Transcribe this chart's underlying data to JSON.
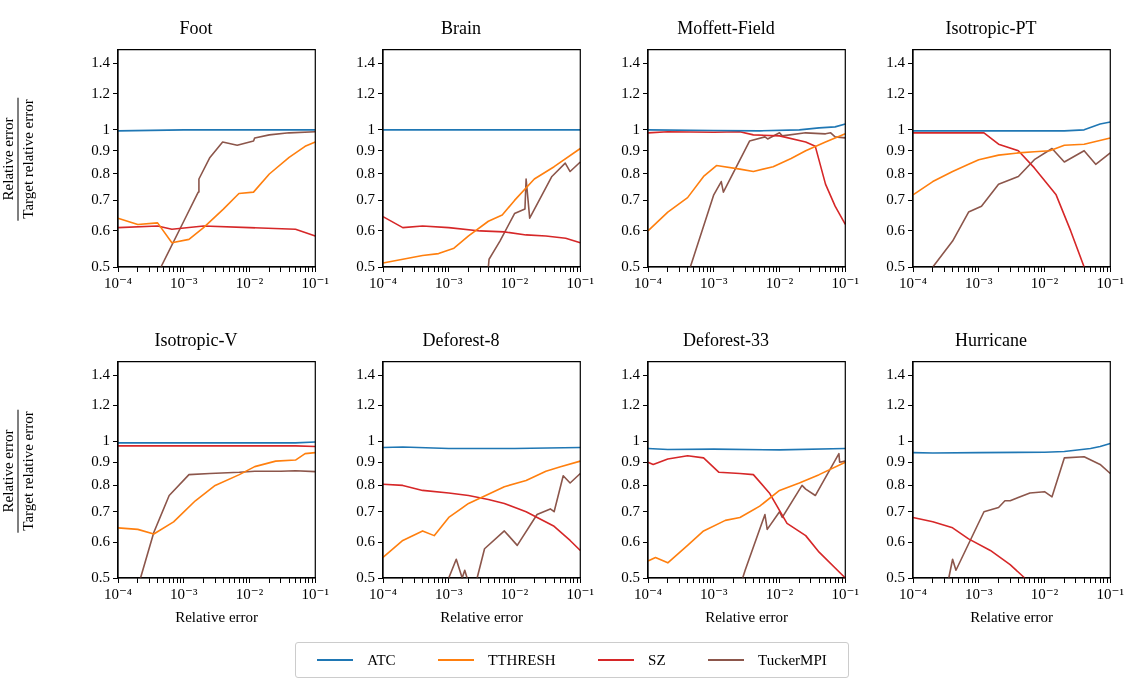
{
  "chart_data": [
    {
      "type": "line",
      "title": "Foot",
      "ylabel": "Relative error\nTarget relative error",
      "xlim": [
        0.0001,
        0.1
      ],
      "ylim": [
        0.5,
        1.5
      ],
      "log": "xy",
      "legend": "bottom",
      "xticks": [
        {
          "value": 0.0001,
          "label": "10⁻⁴"
        },
        {
          "value": 0.0002,
          "label": null
        },
        {
          "value": 0.0003,
          "label": null
        },
        {
          "value": 0.0004,
          "label": null
        },
        {
          "value": 0.0005,
          "label": null
        },
        {
          "value": 0.0006,
          "label": null
        },
        {
          "value": 0.0007,
          "label": null
        },
        {
          "value": 0.0008,
          "label": null
        },
        {
          "value": 0.0009,
          "label": null
        },
        {
          "value": 0.001,
          "label": "10⁻³"
        },
        {
          "value": 0.002,
          "label": null
        },
        {
          "value": 0.003,
          "label": null
        },
        {
          "value": 0.004,
          "label": null
        },
        {
          "value": 0.005,
          "label": null
        },
        {
          "value": 0.006,
          "label": null
        },
        {
          "value": 0.007,
          "label": null
        },
        {
          "value": 0.008,
          "label": null
        },
        {
          "value": 0.009,
          "label": null
        },
        {
          "value": 0.01,
          "label": "10⁻²"
        },
        {
          "value": 0.02,
          "label": null
        },
        {
          "value": 0.03,
          "label": null
        },
        {
          "value": 0.04,
          "label": null
        },
        {
          "value": 0.05,
          "label": null
        },
        {
          "value": 0.06,
          "label": null
        },
        {
          "value": 0.07,
          "label": null
        },
        {
          "value": 0.08,
          "label": null
        },
        {
          "value": 0.09,
          "label": null
        },
        {
          "value": 0.1,
          "label": "10⁻¹"
        }
      ],
      "yticks": [
        0.5,
        0.6,
        0.7,
        0.8,
        0.9,
        1,
        1.2,
        1.4
      ],
      "series": [
        {
          "name": "ATC",
          "color": "#1f77b4",
          "x": [
            0.0001,
            0.001,
            0.01,
            0.1
          ],
          "values": [
            0.995,
            1.0,
            1.0,
            1.0
          ]
        },
        {
          "name": "TTHRESH",
          "color": "#ff7f0e",
          "x": [
            0.0001,
            0.0002,
            0.0004,
            0.00066,
            0.0012,
            0.002,
            0.004,
            0.0069,
            0.0115,
            0.02,
            0.04,
            0.07,
            0.1
          ],
          "values": [
            0.64,
            0.62,
            0.625,
            0.565,
            0.575,
            0.61,
            0.67,
            0.725,
            0.73,
            0.8,
            0.87,
            0.92,
            0.94
          ]
        },
        {
          "name": "SZ",
          "color": "#d62728",
          "x": [
            0.0001,
            0.0004,
            0.00066,
            0.002,
            0.01,
            0.05,
            0.1
          ],
          "values": [
            0.61,
            0.615,
            0.605,
            0.615,
            0.61,
            0.605,
            0.585
          ]
        },
        {
          "name": "TuckerMPI",
          "color": "#8c564b",
          "x": [
            0.00045,
            0.001,
            0.00166,
            0.0017,
            0.0025,
            0.0039,
            0.0065,
            0.0115,
            0.012,
            0.02,
            0.04,
            0.1
          ],
          "values": [
            0.5,
            0.63,
            0.73,
            0.78,
            0.87,
            0.94,
            0.925,
            0.945,
            0.96,
            0.975,
            0.985,
            0.99
          ]
        }
      ]
    },
    {
      "type": "line",
      "title": "Brain",
      "xlim": [
        0.0001,
        0.1
      ],
      "ylim": [
        0.5,
        1.5
      ],
      "log": "xy",
      "xticks": [
        {
          "value": 0.0001,
          "label": "10⁻⁴"
        },
        {
          "value": 0.0002,
          "label": null
        },
        {
          "value": 0.0003,
          "label": null
        },
        {
          "value": 0.0004,
          "label": null
        },
        {
          "value": 0.0005,
          "label": null
        },
        {
          "value": 0.0006,
          "label": null
        },
        {
          "value": 0.0007,
          "label": null
        },
        {
          "value": 0.0008,
          "label": null
        },
        {
          "value": 0.0009,
          "label": null
        },
        {
          "value": 0.001,
          "label": "10⁻³"
        },
        {
          "value": 0.002,
          "label": null
        },
        {
          "value": 0.003,
          "label": null
        },
        {
          "value": 0.004,
          "label": null
        },
        {
          "value": 0.005,
          "label": null
        },
        {
          "value": 0.006,
          "label": null
        },
        {
          "value": 0.007,
          "label": null
        },
        {
          "value": 0.008,
          "label": null
        },
        {
          "value": 0.009,
          "label": null
        },
        {
          "value": 0.01,
          "label": "10⁻²"
        },
        {
          "value": 0.02,
          "label": null
        },
        {
          "value": 0.03,
          "label": null
        },
        {
          "value": 0.04,
          "label": null
        },
        {
          "value": 0.05,
          "label": null
        },
        {
          "value": 0.06,
          "label": null
        },
        {
          "value": 0.07,
          "label": null
        },
        {
          "value": 0.08,
          "label": null
        },
        {
          "value": 0.09,
          "label": null
        },
        {
          "value": 0.1,
          "label": "10⁻¹"
        }
      ],
      "yticks": [
        0.5,
        0.6,
        0.7,
        0.8,
        0.9,
        1,
        1.2,
        1.4
      ],
      "series": [
        {
          "color": "#1f77b4",
          "x": [
            0.0001,
            0.001,
            0.01,
            0.1
          ],
          "values": [
            1.0,
            1.0,
            1.0,
            1.0
          ]
        },
        {
          "color": "#ff7f0e",
          "x": [
            0.0001,
            0.0002,
            0.0004,
            0.0007,
            0.0012,
            0.002,
            0.004,
            0.0065,
            0.01,
            0.02,
            0.04,
            0.1
          ],
          "values": [
            0.51,
            0.52,
            0.53,
            0.535,
            0.55,
            0.585,
            0.63,
            0.65,
            0.7,
            0.78,
            0.83,
            0.91
          ]
        },
        {
          "color": "#d62728",
          "x": [
            0.0001,
            0.0002,
            0.0004,
            0.001,
            0.003,
            0.007,
            0.015,
            0.03,
            0.06,
            0.1
          ],
          "values": [
            0.645,
            0.61,
            0.615,
            0.61,
            0.6,
            0.597,
            0.588,
            0.585,
            0.578,
            0.565
          ]
        },
        {
          "color": "#8c564b",
          "x": [
            0.004,
            0.0041,
            0.006,
            0.01,
            0.0144,
            0.015,
            0.017,
            0.037,
            0.059,
            0.07,
            0.1
          ],
          "values": [
            0.5,
            0.52,
            0.57,
            0.655,
            0.67,
            0.78,
            0.64,
            0.79,
            0.845,
            0.81,
            0.85
          ]
        }
      ]
    },
    {
      "type": "line",
      "title": "Moffett-Field",
      "xlim": [
        0.0001,
        0.1
      ],
      "ylim": [
        0.5,
        1.5
      ],
      "log": "xy",
      "xticks": [
        {
          "value": 0.0001,
          "label": "10⁻⁴"
        },
        {
          "value": 0.0002,
          "label": null
        },
        {
          "value": 0.0003,
          "label": null
        },
        {
          "value": 0.0004,
          "label": null
        },
        {
          "value": 0.0005,
          "label": null
        },
        {
          "value": 0.0006,
          "label": null
        },
        {
          "value": 0.0007,
          "label": null
        },
        {
          "value": 0.0008,
          "label": null
        },
        {
          "value": 0.0009,
          "label": null
        },
        {
          "value": 0.001,
          "label": "10⁻³"
        },
        {
          "value": 0.002,
          "label": null
        },
        {
          "value": 0.003,
          "label": null
        },
        {
          "value": 0.004,
          "label": null
        },
        {
          "value": 0.005,
          "label": null
        },
        {
          "value": 0.006,
          "label": null
        },
        {
          "value": 0.007,
          "label": null
        },
        {
          "value": 0.008,
          "label": null
        },
        {
          "value": 0.009,
          "label": null
        },
        {
          "value": 0.01,
          "label": "10⁻²"
        },
        {
          "value": 0.02,
          "label": null
        },
        {
          "value": 0.03,
          "label": null
        },
        {
          "value": 0.04,
          "label": null
        },
        {
          "value": 0.05,
          "label": null
        },
        {
          "value": 0.06,
          "label": null
        },
        {
          "value": 0.07,
          "label": null
        },
        {
          "value": 0.08,
          "label": null
        },
        {
          "value": 0.09,
          "label": null
        },
        {
          "value": 0.1,
          "label": "10⁻¹"
        }
      ],
      "yticks": [
        0.5,
        0.6,
        0.7,
        0.8,
        0.9,
        1,
        1.2,
        1.4
      ],
      "series": [
        {
          "color": "#1f77b4",
          "x": [
            0.0001,
            0.001,
            0.005,
            0.02,
            0.04,
            0.07,
            0.1
          ],
          "values": [
            1.0,
            0.997,
            0.995,
            1.0,
            1.01,
            1.015,
            1.03
          ]
        },
        {
          "color": "#ff7f0e",
          "x": [
            0.0001,
            0.0002,
            0.0004,
            0.0007,
            0.0011,
            0.0025,
            0.004,
            0.008,
            0.015,
            0.025,
            0.05,
            0.1
          ],
          "values": [
            0.6,
            0.66,
            0.71,
            0.79,
            0.835,
            0.82,
            0.81,
            0.83,
            0.865,
            0.9,
            0.94,
            0.98
          ]
        },
        {
          "color": "#d62728",
          "x": [
            0.0001,
            0.0002,
            0.001,
            0.0025,
            0.004,
            0.01,
            0.025,
            0.035,
            0.05,
            0.07,
            0.1
          ],
          "values": [
            0.985,
            0.99,
            0.988,
            0.99,
            0.975,
            0.97,
            0.94,
            0.92,
            0.76,
            0.68,
            0.62
          ]
        },
        {
          "color": "#8c564b",
          "x": [
            0.00044,
            0.001,
            0.0013,
            0.0014,
            0.0035,
            0.006,
            0.0066,
            0.01,
            0.011,
            0.025,
            0.05,
            0.06,
            0.07,
            0.1
          ],
          "values": [
            0.5,
            0.72,
            0.77,
            0.73,
            0.945,
            0.965,
            0.955,
            0.985,
            0.97,
            0.985,
            0.98,
            0.985,
            0.965,
            0.96
          ]
        }
      ]
    },
    {
      "type": "line",
      "title": "Isotropic-PT",
      "xlim": [
        0.0001,
        0.1
      ],
      "ylim": [
        0.5,
        1.5
      ],
      "log": "xy",
      "xticks": [
        {
          "value": 0.0001,
          "label": "10⁻⁴"
        },
        {
          "value": 0.0002,
          "label": null
        },
        {
          "value": 0.0003,
          "label": null
        },
        {
          "value": 0.0004,
          "label": null
        },
        {
          "value": 0.0005,
          "label": null
        },
        {
          "value": 0.0006,
          "label": null
        },
        {
          "value": 0.0007,
          "label": null
        },
        {
          "value": 0.0008,
          "label": null
        },
        {
          "value": 0.0009,
          "label": null
        },
        {
          "value": 0.001,
          "label": "10⁻³"
        },
        {
          "value": 0.002,
          "label": null
        },
        {
          "value": 0.003,
          "label": null
        },
        {
          "value": 0.004,
          "label": null
        },
        {
          "value": 0.005,
          "label": null
        },
        {
          "value": 0.006,
          "label": null
        },
        {
          "value": 0.007,
          "label": null
        },
        {
          "value": 0.008,
          "label": null
        },
        {
          "value": 0.009,
          "label": null
        },
        {
          "value": 0.01,
          "label": "10⁻²"
        },
        {
          "value": 0.02,
          "label": null
        },
        {
          "value": 0.03,
          "label": null
        },
        {
          "value": 0.04,
          "label": null
        },
        {
          "value": 0.05,
          "label": null
        },
        {
          "value": 0.06,
          "label": null
        },
        {
          "value": 0.07,
          "label": null
        },
        {
          "value": 0.08,
          "label": null
        },
        {
          "value": 0.09,
          "label": null
        },
        {
          "value": 0.1,
          "label": "10⁻¹"
        }
      ],
      "yticks": [
        0.5,
        0.6,
        0.7,
        0.8,
        0.9,
        1,
        1.2,
        1.4
      ],
      "series": [
        {
          "color": "#1f77b4",
          "x": [
            0.0001,
            0.001,
            0.02,
            0.04,
            0.07,
            0.1
          ],
          "values": [
            0.995,
            0.995,
            0.995,
            1.0,
            1.03,
            1.04
          ]
        },
        {
          "color": "#ff7f0e",
          "x": [
            0.0001,
            0.0002,
            0.0004,
            0.0007,
            0.001,
            0.002,
            0.004,
            0.007,
            0.012,
            0.02,
            0.04,
            0.1
          ],
          "values": [
            0.72,
            0.77,
            0.81,
            0.84,
            0.86,
            0.88,
            0.89,
            0.895,
            0.9,
            0.925,
            0.93,
            0.96
          ]
        },
        {
          "color": "#d62728",
          "x": [
            0.0001,
            0.0012,
            0.002,
            0.004,
            0.007,
            0.015,
            0.025,
            0.04
          ],
          "values": [
            0.985,
            0.985,
            0.93,
            0.9,
            0.825,
            0.72,
            0.6,
            0.5
          ]
        },
        {
          "color": "#8c564b",
          "x": [
            0.0002,
            0.0004,
            0.0007,
            0.0011,
            0.002,
            0.004,
            0.007,
            0.013,
            0.02,
            0.04,
            0.06,
            0.1
          ],
          "values": [
            0.5,
            0.57,
            0.66,
            0.68,
            0.76,
            0.79,
            0.86,
            0.91,
            0.85,
            0.9,
            0.84,
            0.89
          ]
        }
      ]
    },
    {
      "type": "line",
      "title": "Isotropic-V",
      "xlabel": "Relative error",
      "ylabel": "Relative error\nTarget relative error",
      "xlim": [
        0.0001,
        0.1
      ],
      "ylim": [
        0.5,
        1.5
      ],
      "log": "xy",
      "xticks": [
        {
          "value": 0.0001,
          "label": "10⁻⁴"
        },
        {
          "value": 0.0002,
          "label": null
        },
        {
          "value": 0.0003,
          "label": null
        },
        {
          "value": 0.0004,
          "label": null
        },
        {
          "value": 0.0005,
          "label": null
        },
        {
          "value": 0.0006,
          "label": null
        },
        {
          "value": 0.0007,
          "label": null
        },
        {
          "value": 0.0008,
          "label": null
        },
        {
          "value": 0.0009,
          "label": null
        },
        {
          "value": 0.001,
          "label": "10⁻³"
        },
        {
          "value": 0.002,
          "label": null
        },
        {
          "value": 0.003,
          "label": null
        },
        {
          "value": 0.004,
          "label": null
        },
        {
          "value": 0.005,
          "label": null
        },
        {
          "value": 0.006,
          "label": null
        },
        {
          "value": 0.007,
          "label": null
        },
        {
          "value": 0.008,
          "label": null
        },
        {
          "value": 0.009,
          "label": null
        },
        {
          "value": 0.01,
          "label": "10⁻²"
        },
        {
          "value": 0.02,
          "label": null
        },
        {
          "value": 0.03,
          "label": null
        },
        {
          "value": 0.04,
          "label": null
        },
        {
          "value": 0.05,
          "label": null
        },
        {
          "value": 0.06,
          "label": null
        },
        {
          "value": 0.07,
          "label": null
        },
        {
          "value": 0.08,
          "label": null
        },
        {
          "value": 0.09,
          "label": null
        },
        {
          "value": 0.1,
          "label": "10⁻¹"
        }
      ],
      "yticks": [
        0.5,
        0.6,
        0.7,
        0.8,
        0.9,
        1,
        1.2,
        1.4
      ],
      "series": [
        {
          "color": "#1f77b4",
          "x": [
            0.0001,
            0.001,
            0.01,
            0.05,
            0.1
          ],
          "values": [
            0.993,
            0.993,
            0.993,
            0.993,
            0.997
          ]
        },
        {
          "color": "#ff7f0e",
          "x": [
            0.0001,
            0.0002,
            0.00035,
            0.0007,
            0.0015,
            0.003,
            0.007,
            0.012,
            0.025,
            0.05,
            0.07,
            0.1
          ],
          "values": [
            0.645,
            0.64,
            0.625,
            0.665,
            0.74,
            0.8,
            0.845,
            0.88,
            0.905,
            0.91,
            0.94,
            0.945
          ]
        },
        {
          "color": "#d62728",
          "x": [
            0.0001,
            0.001,
            0.01,
            0.05,
            0.1
          ],
          "values": [
            0.978,
            0.978,
            0.978,
            0.978,
            0.975
          ]
        },
        {
          "color": "#8c564b",
          "x": [
            0.00022,
            0.00035,
            0.0006,
            0.0012,
            0.0025,
            0.007,
            0.012,
            0.03,
            0.05,
            0.1
          ],
          "values": [
            0.5,
            0.63,
            0.76,
            0.845,
            0.85,
            0.855,
            0.86,
            0.86,
            0.862,
            0.858
          ]
        }
      ]
    },
    {
      "type": "line",
      "title": "Deforest-8",
      "xlabel": "Relative error",
      "xlim": [
        0.0001,
        0.1
      ],
      "ylim": [
        0.5,
        1.5
      ],
      "log": "xy",
      "xticks": [
        {
          "value": 0.0001,
          "label": "10⁻⁴"
        },
        {
          "value": 0.0002,
          "label": null
        },
        {
          "value": 0.0003,
          "label": null
        },
        {
          "value": 0.0004,
          "label": null
        },
        {
          "value": 0.0005,
          "label": null
        },
        {
          "value": 0.0006,
          "label": null
        },
        {
          "value": 0.0007,
          "label": null
        },
        {
          "value": 0.0008,
          "label": null
        },
        {
          "value": 0.0009,
          "label": null
        },
        {
          "value": 0.001,
          "label": "10⁻³"
        },
        {
          "value": 0.002,
          "label": null
        },
        {
          "value": 0.003,
          "label": null
        },
        {
          "value": 0.004,
          "label": null
        },
        {
          "value": 0.005,
          "label": null
        },
        {
          "value": 0.006,
          "label": null
        },
        {
          "value": 0.007,
          "label": null
        },
        {
          "value": 0.008,
          "label": null
        },
        {
          "value": 0.009,
          "label": null
        },
        {
          "value": 0.01,
          "label": "10⁻²"
        },
        {
          "value": 0.02,
          "label": null
        },
        {
          "value": 0.03,
          "label": null
        },
        {
          "value": 0.04,
          "label": null
        },
        {
          "value": 0.05,
          "label": null
        },
        {
          "value": 0.06,
          "label": null
        },
        {
          "value": 0.07,
          "label": null
        },
        {
          "value": 0.08,
          "label": null
        },
        {
          "value": 0.09,
          "label": null
        },
        {
          "value": 0.1,
          "label": "10⁻¹"
        }
      ],
      "yticks": [
        0.5,
        0.6,
        0.7,
        0.8,
        0.9,
        1,
        1.2,
        1.4
      ],
      "series": [
        {
          "color": "#1f77b4",
          "x": [
            0.0001,
            0.0002,
            0.001,
            0.01,
            0.1
          ],
          "values": [
            0.97,
            0.972,
            0.965,
            0.965,
            0.97
          ]
        },
        {
          "color": "#ff7f0e",
          "x": [
            0.0001,
            0.0002,
            0.0004,
            0.0006,
            0.001,
            0.002,
            0.004,
            0.007,
            0.015,
            0.03,
            0.05,
            0.1
          ],
          "values": [
            0.555,
            0.605,
            0.635,
            0.62,
            0.68,
            0.73,
            0.765,
            0.795,
            0.82,
            0.86,
            0.88,
            0.905
          ]
        },
        {
          "color": "#d62728",
          "x": [
            0.0001,
            0.0002,
            0.0004,
            0.001,
            0.002,
            0.004,
            0.007,
            0.015,
            0.04,
            0.07,
            0.1
          ],
          "values": [
            0.805,
            0.8,
            0.78,
            0.77,
            0.76,
            0.745,
            0.73,
            0.7,
            0.65,
            0.605,
            0.575
          ]
        },
        {
          "color": "#8c564b",
          "x": [
            0.001,
            0.0013,
            0.0016,
            0.00175,
            0.0019,
            0.0023,
            0.0027,
            0.0035,
            0.007,
            0.011,
            0.022,
            0.035,
            0.04,
            0.055,
            0.07,
            0.1
          ],
          "values": [
            0.5,
            0.55,
            0.5,
            0.52,
            0.5,
            null,
            0.5,
            0.58,
            0.635,
            0.59,
            0.69,
            0.71,
            0.7,
            0.84,
            0.81,
            0.85
          ]
        }
      ]
    },
    {
      "type": "line",
      "title": "Deforest-33",
      "xlabel": "Relative error",
      "xlim": [
        0.0001,
        0.1
      ],
      "ylim": [
        0.5,
        1.5
      ],
      "log": "xy",
      "xticks": [
        {
          "value": 0.0001,
          "label": "10⁻⁴"
        },
        {
          "value": 0.0002,
          "label": null
        },
        {
          "value": 0.0003,
          "label": null
        },
        {
          "value": 0.0004,
          "label": null
        },
        {
          "value": 0.0005,
          "label": null
        },
        {
          "value": 0.0006,
          "label": null
        },
        {
          "value": 0.0007,
          "label": null
        },
        {
          "value": 0.0008,
          "label": null
        },
        {
          "value": 0.0009,
          "label": null
        },
        {
          "value": 0.001,
          "label": "10⁻³"
        },
        {
          "value": 0.002,
          "label": null
        },
        {
          "value": 0.003,
          "label": null
        },
        {
          "value": 0.004,
          "label": null
        },
        {
          "value": 0.005,
          "label": null
        },
        {
          "value": 0.006,
          "label": null
        },
        {
          "value": 0.007,
          "label": null
        },
        {
          "value": 0.008,
          "label": null
        },
        {
          "value": 0.009,
          "label": null
        },
        {
          "value": 0.01,
          "label": "10⁻²"
        },
        {
          "value": 0.02,
          "label": null
        },
        {
          "value": 0.03,
          "label": null
        },
        {
          "value": 0.04,
          "label": null
        },
        {
          "value": 0.05,
          "label": null
        },
        {
          "value": 0.06,
          "label": null
        },
        {
          "value": 0.07,
          "label": null
        },
        {
          "value": 0.08,
          "label": null
        },
        {
          "value": 0.09,
          "label": null
        },
        {
          "value": 0.1,
          "label": "10⁻¹"
        }
      ],
      "yticks": [
        0.5,
        0.6,
        0.7,
        0.8,
        0.9,
        1,
        1.2,
        1.4
      ],
      "series": [
        {
          "color": "#1f77b4",
          "x": [
            0.0001,
            0.0002,
            0.001,
            0.01,
            0.1
          ],
          "values": [
            0.965,
            0.96,
            0.962,
            0.958,
            0.965
          ]
        },
        {
          "color": "#ff7f0e",
          "x": [
            0.0001,
            0.00013,
            0.0002,
            0.0004,
            0.0007,
            0.0015,
            0.0025,
            0.005,
            0.01,
            0.02,
            0.04,
            0.1
          ],
          "values": [
            0.545,
            0.555,
            0.54,
            0.59,
            0.635,
            0.67,
            0.68,
            0.72,
            0.78,
            0.81,
            0.845,
            0.9
          ]
        },
        {
          "color": "#d62728",
          "x": [
            0.0001,
            0.00012,
            0.0002,
            0.0004,
            0.0007,
            0.0012,
            0.0025,
            0.004,
            0.007,
            0.013,
            0.025,
            0.04,
            0.1
          ],
          "values": [
            0.9,
            0.89,
            0.915,
            0.93,
            0.92,
            0.855,
            0.85,
            0.845,
            0.77,
            0.66,
            0.62,
            0.57,
            0.5
          ]
        },
        {
          "color": "#8c564b",
          "x": [
            0.00275,
            0.003,
            0.006,
            0.0065,
            0.01,
            0.011,
            0.022,
            0.025,
            0.035,
            0.08,
            0.082,
            0.1
          ],
          "values": [
            0.5,
            0.52,
            0.69,
            0.64,
            0.7,
            0.68,
            0.8,
            0.785,
            0.76,
            0.94,
            0.9,
            0.905
          ]
        }
      ]
    },
    {
      "type": "line",
      "title": "Hurricane",
      "xlabel": "Relative error",
      "xlim": [
        0.0001,
        0.1
      ],
      "ylim": [
        0.5,
        1.5
      ],
      "log": "xy",
      "xticks": [
        {
          "value": 0.0001,
          "label": "10⁻⁴"
        },
        {
          "value": 0.0002,
          "label": null
        },
        {
          "value": 0.0003,
          "label": null
        },
        {
          "value": 0.0004,
          "label": null
        },
        {
          "value": 0.0005,
          "label": null
        },
        {
          "value": 0.0006,
          "label": null
        },
        {
          "value": 0.0007,
          "label": null
        },
        {
          "value": 0.0008,
          "label": null
        },
        {
          "value": 0.0009,
          "label": null
        },
        {
          "value": 0.001,
          "label": "10⁻³"
        },
        {
          "value": 0.002,
          "label": null
        },
        {
          "value": 0.003,
          "label": null
        },
        {
          "value": 0.004,
          "label": null
        },
        {
          "value": 0.005,
          "label": null
        },
        {
          "value": 0.006,
          "label": null
        },
        {
          "value": 0.007,
          "label": null
        },
        {
          "value": 0.008,
          "label": null
        },
        {
          "value": 0.009,
          "label": null
        },
        {
          "value": 0.01,
          "label": "10⁻²"
        },
        {
          "value": 0.02,
          "label": null
        },
        {
          "value": 0.03,
          "label": null
        },
        {
          "value": 0.04,
          "label": null
        },
        {
          "value": 0.05,
          "label": null
        },
        {
          "value": 0.06,
          "label": null
        },
        {
          "value": 0.07,
          "label": null
        },
        {
          "value": 0.08,
          "label": null
        },
        {
          "value": 0.09,
          "label": null
        },
        {
          "value": 0.1,
          "label": "10⁻¹"
        }
      ],
      "yticks": [
        0.5,
        0.6,
        0.7,
        0.8,
        0.9,
        1,
        1.2,
        1.4
      ],
      "series": [
        {
          "color": "#1f77b4",
          "x": [
            0.0001,
            0.0002,
            0.001,
            0.01,
            0.02,
            0.05,
            0.07,
            0.1
          ],
          "values": [
            0.945,
            0.943,
            0.945,
            0.947,
            0.95,
            0.965,
            0.975,
            0.99
          ]
        },
        {
          "color": "#d62728",
          "x": [
            0.0001,
            0.0002,
            0.0004,
            0.0007,
            0.0015,
            0.003,
            0.005
          ],
          "values": [
            0.68,
            0.665,
            0.645,
            0.61,
            0.575,
            0.535,
            0.5
          ]
        },
        {
          "color": "#8c564b",
          "x": [
            0.00035,
            0.0004,
            0.00045,
            0.0012,
            0.002,
            0.0025,
            0.003,
            0.006,
            0.01,
            0.013,
            0.02,
            0.04,
            0.07,
            0.1
          ],
          "values": [
            0.5,
            0.55,
            0.52,
            0.7,
            0.715,
            0.74,
            0.74,
            0.77,
            0.775,
            0.755,
            0.92,
            0.925,
            0.89,
            0.85
          ]
        }
      ]
    }
  ]
}
